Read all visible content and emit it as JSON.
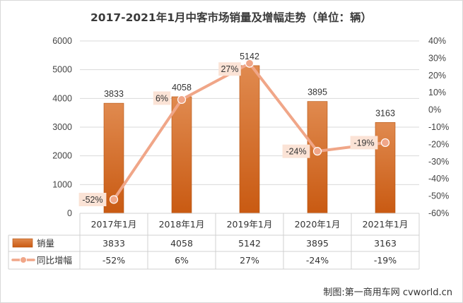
{
  "chart_data": {
    "type": "bar+line",
    "title": "2017-2021年1月中客市场销量及增幅走势（单位：辆）",
    "categories": [
      "2017年1月",
      "2018年1月",
      "2019年1月",
      "2020年1月",
      "2021年1月"
    ],
    "series": [
      {
        "name": "销量",
        "type": "bar",
        "axis": "left",
        "values": [
          3833,
          4058,
          5142,
          3895,
          3163
        ],
        "labels": [
          "3833",
          "4058",
          "5142",
          "3895",
          "3163"
        ],
        "color": "#d5661f"
      },
      {
        "name": "同比增幅",
        "type": "line",
        "axis": "right",
        "values": [
          -52,
          6,
          27,
          -24,
          -19
        ],
        "labels": [
          "-52%",
          "6%",
          "27%",
          "-24%",
          "-19%"
        ],
        "color": "#f0a688"
      }
    ],
    "y_left": {
      "min": 0,
      "max": 6000,
      "step": 1000,
      "ticks": [
        "0",
        "1000",
        "2000",
        "3000",
        "4000",
        "5000",
        "6000"
      ]
    },
    "y_right": {
      "min": -60,
      "max": 40,
      "step": 10,
      "ticks": [
        "-60%",
        "-50%",
        "-40%",
        "-30%",
        "-20%",
        "-10%",
        "0%",
        "10%",
        "20%",
        "30%",
        "40%"
      ]
    },
    "grid": true,
    "legend": "data-table",
    "credit": "制图:第一商用车网 cvworld.cn"
  }
}
